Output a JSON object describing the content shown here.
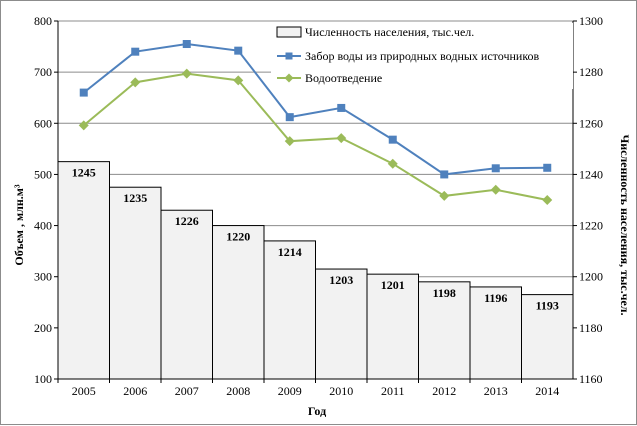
{
  "chart_data": {
    "type": "bar+line",
    "x_title": "Год",
    "y_left_title": "Объем , млн.м³",
    "y_right_title": "Численность населения, тыс.чел.",
    "categories": [
      "2005",
      "2006",
      "2007",
      "2008",
      "2009",
      "2010",
      "2011",
      "2012",
      "2013",
      "2014"
    ],
    "y_left": {
      "min": 100,
      "max": 800,
      "ticks": [
        "100",
        "200",
        "300",
        "400",
        "500",
        "600",
        "700",
        "800"
      ]
    },
    "y_right": {
      "min": 1160,
      "max": 1300,
      "ticks": [
        "1160",
        "1180",
        "1200",
        "1220",
        "1240",
        "1260",
        "1280",
        "1300"
      ]
    },
    "gridlines": "horizontal",
    "legend_position": "top-right",
    "series": [
      {
        "name": "Численность населения, тыс.чел.",
        "kind": "bar",
        "axis": "right",
        "color": "#f2f2f2",
        "values": [
          1245,
          1235,
          1226,
          1220,
          1214,
          1203,
          1201,
          1198,
          1196,
          1193
        ],
        "labels": [
          "1245",
          "1235",
          "1226",
          "1220",
          "1214",
          "1203",
          "1201",
          "1198",
          "1196",
          "1193"
        ]
      },
      {
        "name": "Забор воды из природных водных источников",
        "kind": "line",
        "axis": "left",
        "color": "#4f81bd",
        "marker": "square",
        "values": [
          660,
          740,
          755,
          742,
          612,
          630,
          568,
          500,
          512,
          513
        ]
      },
      {
        "name": "Водоотведение",
        "kind": "line",
        "axis": "left",
        "color": "#9bbb59",
        "marker": "diamond",
        "values": [
          596,
          680,
          697,
          684,
          565,
          571,
          521,
          458,
          470,
          450
        ]
      }
    ]
  }
}
